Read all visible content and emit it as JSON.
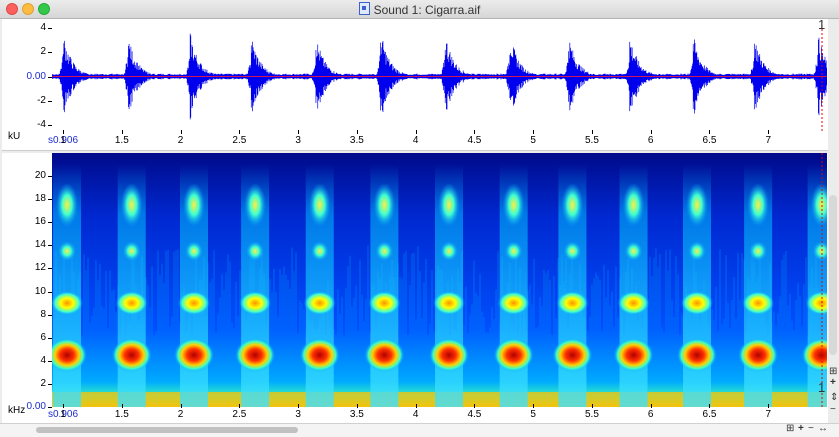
{
  "window": {
    "title": "Sound 1: Cigarra.aif"
  },
  "waveform": {
    "unit_label": "kU",
    "y_ticks": [
      "4",
      "2",
      "0.00",
      "-2",
      "-4"
    ],
    "y_values": [
      4,
      2,
      0,
      -2,
      -4
    ],
    "y_range": [
      -4.6,
      4.6
    ],
    "marker": "1"
  },
  "spectrogram": {
    "unit_label": "kHz",
    "y_ticks": [
      "20",
      "18",
      "16",
      "14",
      "12",
      "10",
      "8",
      "6",
      "4",
      "2",
      "0.00"
    ],
    "y_values": [
      20,
      18,
      16,
      14,
      12,
      10,
      8,
      6,
      4,
      2,
      0
    ],
    "y_range": [
      0,
      22
    ],
    "marker": "1"
  },
  "time_axis": {
    "start_label": "0.906",
    "start_prefix": "s",
    "ticks": [
      "1",
      "1.5",
      "2",
      "2.5",
      "3",
      "3.5",
      "4",
      "4.5",
      "5",
      "5.5",
      "6",
      "6.5",
      "7"
    ],
    "tick_values": [
      1,
      1.5,
      2,
      2.5,
      3,
      3.5,
      4,
      4.5,
      5,
      5.5,
      6,
      6.5,
      7
    ],
    "range": [
      0.906,
      7.5
    ]
  },
  "chart_data": [
    {
      "type": "line",
      "title": "",
      "xlabel": "",
      "ylabel": "kU",
      "xlim": [
        0.906,
        7.5
      ],
      "ylim": [
        -4.6,
        4.6
      ],
      "pulse_times_s": [
        1.0,
        1.55,
        2.08,
        2.6,
        3.15,
        3.7,
        4.25,
        4.8,
        5.3,
        5.82,
        6.36,
        6.88,
        7.42
      ],
      "pulse_peak_kU": [
        3.8,
        3.6,
        3.8,
        3.6,
        3.6,
        4.0,
        3.8,
        3.8,
        3.6,
        3.6,
        3.6,
        3.6,
        3.8
      ],
      "color": "#0000ee"
    },
    {
      "type": "heatmap",
      "title": "",
      "xlabel": "",
      "ylabel": "kHz",
      "xlim": [
        0.906,
        7.5
      ],
      "ylim": [
        0,
        22
      ],
      "energy_bands_khz": [
        4.5,
        9,
        13.5,
        17.5
      ],
      "pulse_times_s": [
        1.0,
        1.55,
        2.08,
        2.6,
        3.15,
        3.7,
        4.25,
        4.8,
        5.3,
        5.82,
        6.36,
        6.88,
        7.42
      ],
      "colormap": [
        "#000a8a",
        "#0030ff",
        "#00c8ff",
        "#ffff00",
        "#ff6000",
        "#c00000"
      ]
    }
  ],
  "controls": {
    "zoom_in": "+",
    "zoom_out": "−",
    "fit_v": "⇕",
    "fit_h": "↔",
    "grid": "⊞"
  }
}
